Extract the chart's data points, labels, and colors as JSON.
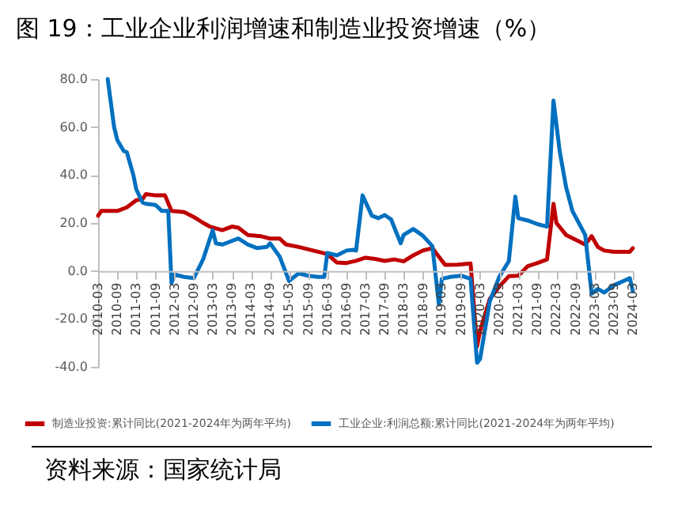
{
  "chart_data": {
    "type": "line",
    "title": "图 19：工业企业利润增速和制造业投资增速（%）",
    "annotations": [
      "资料来源：国家统计局"
    ],
    "xlim": [
      "2010-03",
      "2024-03"
    ],
    "xticks": [
      "2010-03",
      "2010-09",
      "2011-03",
      "2011-09",
      "2012-03",
      "2012-09",
      "2013-03",
      "2013-09",
      "2014-03",
      "2014-09",
      "2015-03",
      "2015-09",
      "2016-03",
      "2016-09",
      "2017-03",
      "2017-09",
      "2018-03",
      "2018-09",
      "2019-03",
      "2019-09",
      "2020-03",
      "2020-09",
      "2021-03",
      "2021-09",
      "2022-03",
      "2022-09",
      "2023-03",
      "2023-09",
      "2024-03"
    ],
    "ylim": [
      -40,
      80
    ],
    "yticks": [
      {
        "value": 80,
        "label": "80.0"
      },
      {
        "value": 60,
        "label": "60.0"
      },
      {
        "value": 40,
        "label": "40.0"
      },
      {
        "value": 20,
        "label": "20.0"
      },
      {
        "value": 0,
        "label": "0.0"
      },
      {
        "value": -20,
        "label": "-20.0"
      },
      {
        "value": -40,
        "label": "-40.0"
      }
    ],
    "grid": false,
    "legend": "bottom",
    "line_style": "solid",
    "series": [
      {
        "name": "制造业投资:累计同比(2021-2024年为两年平均)",
        "color": "#c00000",
        "x": [
          "2010-03",
          "2010-04",
          "2010-06",
          "2010-09",
          "2010-12",
          "2011-03",
          "2011-05",
          "2011-06",
          "2011-09",
          "2011-12",
          "2012-02",
          "2012-06",
          "2012-09",
          "2012-12",
          "2013-02",
          "2013-06",
          "2013-09",
          "2013-11",
          "2014-02",
          "2014-06",
          "2014-09",
          "2014-12",
          "2015-02",
          "2015-06",
          "2015-12",
          "2016-03",
          "2016-06",
          "2016-09",
          "2016-12",
          "2017-03",
          "2017-06",
          "2017-09",
          "2017-12",
          "2018-03",
          "2018-06",
          "2018-09",
          "2018-12",
          "2019-02",
          "2019-04",
          "2019-08",
          "2019-12",
          "2020-02",
          "2020-03",
          "2020-06",
          "2020-09",
          "2020-12",
          "2021-03",
          "2021-06",
          "2021-09",
          "2021-12",
          "2022-02",
          "2022-03",
          "2022-06",
          "2022-09",
          "2022-12",
          "2023-02",
          "2023-04",
          "2023-06",
          "2023-09",
          "2023-12",
          "2024-02",
          "2024-03"
        ],
        "values": [
          23,
          25,
          25,
          25,
          26.5,
          29.5,
          30,
          32,
          31.5,
          31.5,
          25,
          24.5,
          22.5,
          20,
          18.5,
          17,
          18.5,
          18,
          15,
          14.5,
          13.5,
          13.5,
          11,
          10,
          8,
          7,
          3.5,
          3.3,
          4.2,
          5.5,
          5,
          4.2,
          4.8,
          4,
          6.5,
          8.5,
          9.5,
          5.9,
          2.5,
          2.6,
          3.1,
          -31.5,
          -25,
          -11.7,
          -6.5,
          -2.2,
          -2,
          2,
          3.3,
          4.8,
          28,
          20,
          15,
          13,
          11,
          14.5,
          10,
          8.5,
          8,
          8,
          8,
          9.5
        ]
      },
      {
        "name": "工业企业:利润总额:累计同比(2021-2024年为两年平均)",
        "color": "#0070c0",
        "x": [
          "2010-06",
          "2010-08",
          "2010-09",
          "2010-11",
          "2010-12",
          "2011-02",
          "2011-03",
          "2011-05",
          "2011-06",
          "2011-09",
          "2011-11",
          "2012-01",
          "2012-02",
          "2012-03",
          "2012-06",
          "2012-09",
          "2012-12",
          "2013-03",
          "2013-04",
          "2013-06",
          "2013-08",
          "2013-11",
          "2014-02",
          "2014-05",
          "2014-08",
          "2014-09",
          "2014-12",
          "2015-03",
          "2015-06",
          "2015-09",
          "2015-12",
          "2016-02",
          "2016-03",
          "2016-06",
          "2016-09",
          "2016-11",
          "2016-12",
          "2017-02",
          "2017-05",
          "2017-07",
          "2017-09",
          "2017-11",
          "2018-02",
          "2018-03",
          "2018-06",
          "2018-09",
          "2018-12",
          "2019-02",
          "2019-03",
          "2019-06",
          "2019-09",
          "2019-12",
          "2020-02",
          "2020-03",
          "2020-06",
          "2020-09",
          "2020-12",
          "2021-02",
          "2021-03",
          "2021-06",
          "2021-09",
          "2021-12",
          "2022-02",
          "2022-04",
          "2022-06",
          "2022-08",
          "2022-10",
          "2022-12",
          "2023-02",
          "2023-04",
          "2023-06",
          "2023-09",
          "2023-12",
          "2024-02",
          "2024-03"
        ],
        "values": [
          80,
          60,
          54.5,
          50,
          49.5,
          40,
          34,
          28.5,
          28,
          27.5,
          25,
          25,
          -5,
          -1.5,
          -2.5,
          -3,
          5,
          17,
          11.5,
          11,
          12,
          13.5,
          11,
          9.5,
          10,
          11.5,
          6,
          -4.2,
          -1,
          -2,
          -2.5,
          -2.5,
          7.5,
          6.5,
          8.5,
          8.8,
          8.5,
          31.5,
          23,
          22,
          23.3,
          21.5,
          11.5,
          15,
          17.5,
          14.7,
          10.3,
          -14,
          -3.3,
          -2.4,
          -2,
          -3.3,
          -38.3,
          -36.7,
          -12.8,
          -2.4,
          4.1,
          31,
          22,
          21,
          19.5,
          18.5,
          71,
          50,
          35,
          25,
          20,
          15,
          -9.5,
          -7.5,
          -9,
          -6,
          -4.2,
          -3,
          -8.5
        ]
      }
    ]
  }
}
